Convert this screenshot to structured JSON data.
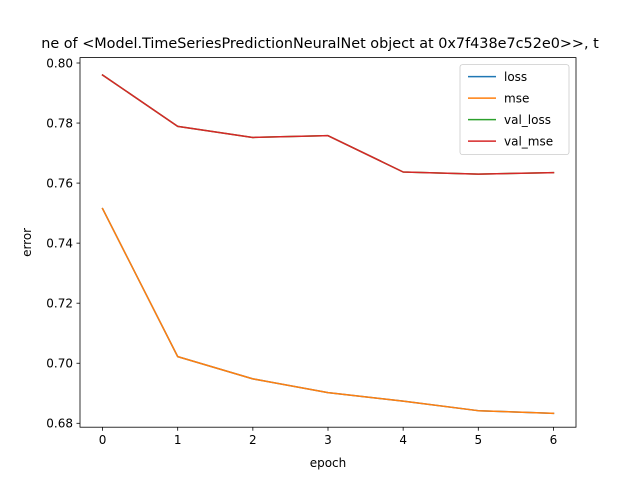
{
  "chart_data": {
    "type": "line",
    "title": "ne of <Model.TimeSeriesPredictionNeuralNet object at 0x7f438e7c52e0>>, t",
    "xlabel": "epoch",
    "ylabel": "error",
    "x": [
      0,
      1,
      2,
      3,
      4,
      5,
      6
    ],
    "xticks": [
      0,
      1,
      2,
      3,
      4,
      5,
      6
    ],
    "yticks": [
      0.68,
      0.7,
      0.72,
      0.74,
      0.76,
      0.78,
      0.8
    ],
    "xlim": [
      -0.3,
      6.3
    ],
    "ylim": [
      0.6787,
      0.8018
    ],
    "grid": false,
    "legend": "upper right",
    "series": [
      {
        "name": "loss",
        "color": "#1f77b4",
        "values": [
          0.7515,
          0.7022,
          0.6948,
          0.6902,
          0.6874,
          0.6842,
          0.6833
        ]
      },
      {
        "name": "mse",
        "color": "#ff7f0e",
        "values": [
          0.7515,
          0.7022,
          0.6948,
          0.6902,
          0.6874,
          0.6842,
          0.6833
        ]
      },
      {
        "name": "val_loss",
        "color": "#2ca02c",
        "values": [
          0.796,
          0.7789,
          0.7752,
          0.7758,
          0.7637,
          0.763,
          0.7635
        ]
      },
      {
        "name": "val_mse",
        "color": "#d62728",
        "values": [
          0.796,
          0.7789,
          0.7752,
          0.7758,
          0.7637,
          0.763,
          0.7635
        ]
      }
    ]
  }
}
